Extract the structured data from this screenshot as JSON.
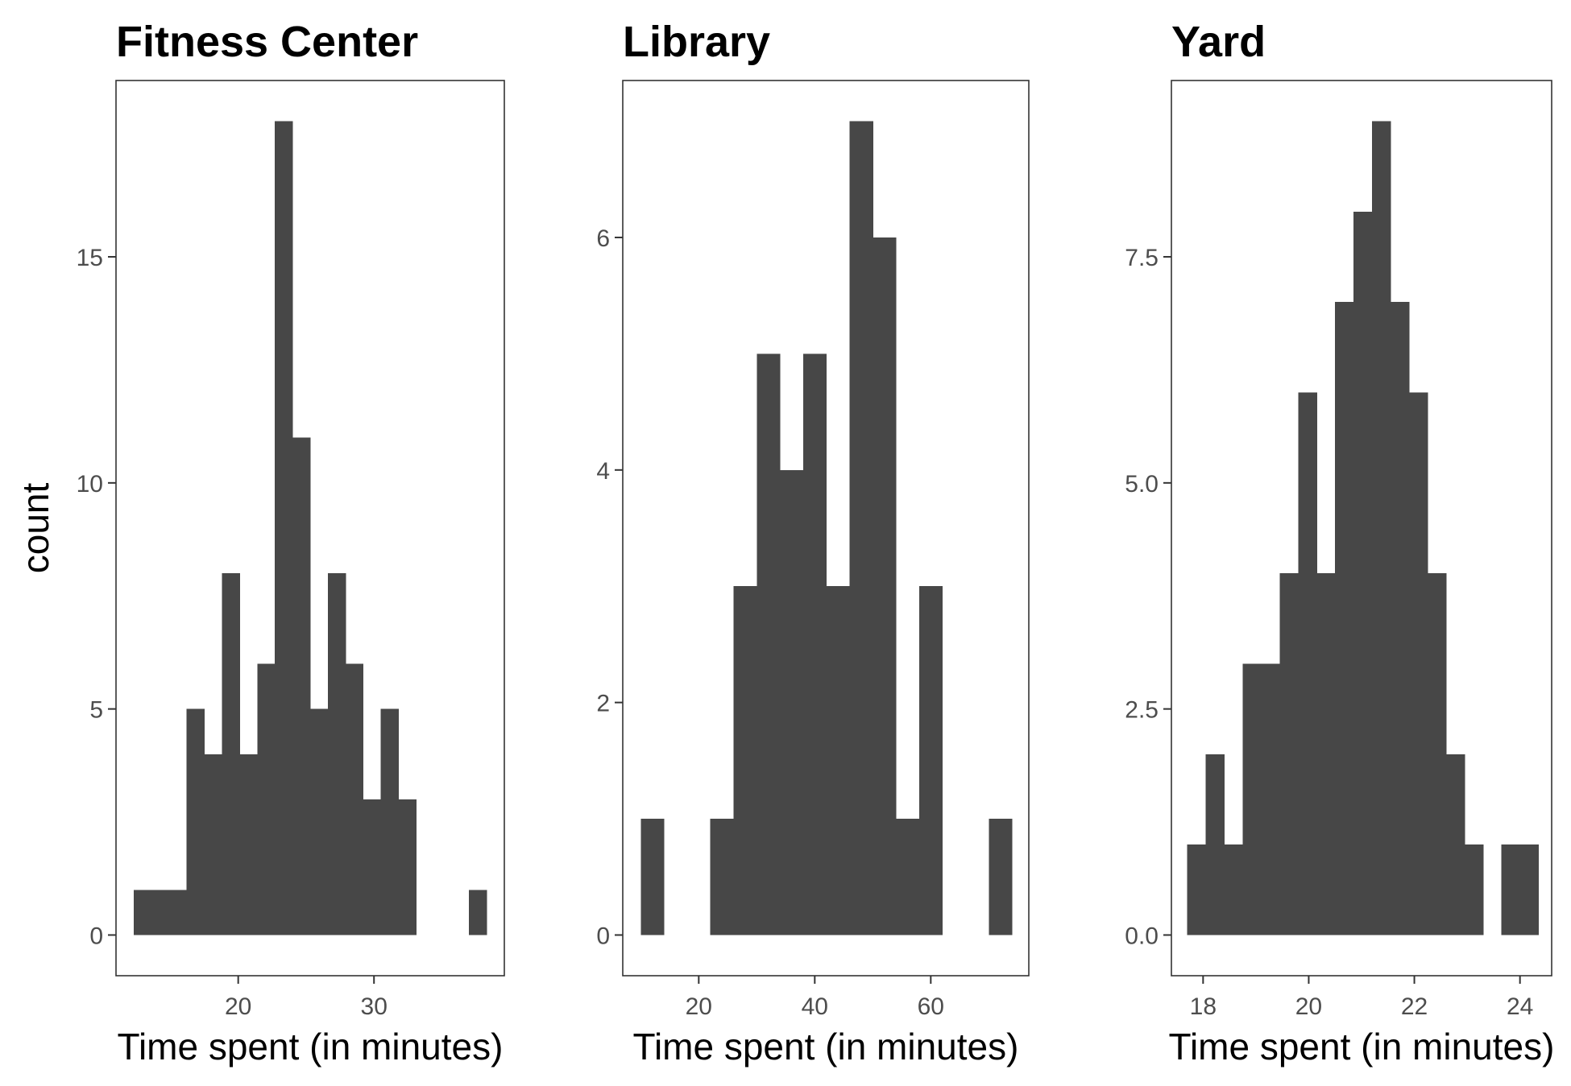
{
  "chart_data": [
    {
      "type": "bar",
      "title": "Fitness Center",
      "xlabel": "Time spent (in minutes)",
      "ylabel": "count",
      "binwidth": 1.3,
      "bins": [
        {
          "x0": 12.3,
          "count": 1
        },
        {
          "x0": 13.6,
          "count": 1
        },
        {
          "x0": 14.9,
          "count": 1
        },
        {
          "x0": 16.2,
          "count": 5
        },
        {
          "x0": 17.5,
          "count": 4
        },
        {
          "x0": 18.8,
          "count": 8
        },
        {
          "x0": 20.1,
          "count": 4
        },
        {
          "x0": 21.4,
          "count": 6
        },
        {
          "x0": 22.7,
          "count": 18
        },
        {
          "x0": 24.0,
          "count": 11
        },
        {
          "x0": 25.3,
          "count": 5
        },
        {
          "x0": 26.6,
          "count": 8
        },
        {
          "x0": 27.9,
          "count": 6
        },
        {
          "x0": 29.2,
          "count": 3
        },
        {
          "x0": 30.5,
          "count": 5
        },
        {
          "x0": 31.8,
          "count": 3
        },
        {
          "x0": 37.0,
          "count": 1
        }
      ],
      "xlim": [
        11.0,
        39.6
      ],
      "ylim": [
        -0.9,
        18.9
      ],
      "xticks": [
        20,
        30
      ],
      "yticks": [
        0,
        5,
        10,
        15
      ],
      "ytick_labels": [
        "0",
        "5",
        "10",
        "15"
      ]
    },
    {
      "type": "bar",
      "title": "Library",
      "xlabel": "Time spent (in minutes)",
      "binwidth": 4.0,
      "bins": [
        {
          "x0": 10.0,
          "count": 1
        },
        {
          "x0": 22.0,
          "count": 1
        },
        {
          "x0": 26.0,
          "count": 3
        },
        {
          "x0": 30.0,
          "count": 5
        },
        {
          "x0": 34.0,
          "count": 4
        },
        {
          "x0": 38.0,
          "count": 5
        },
        {
          "x0": 42.0,
          "count": 3
        },
        {
          "x0": 46.0,
          "count": 7
        },
        {
          "x0": 50.0,
          "count": 6
        },
        {
          "x0": 54.0,
          "count": 1
        },
        {
          "x0": 58.0,
          "count": 3
        },
        {
          "x0": 70.0,
          "count": 1
        }
      ],
      "xlim": [
        6.9,
        76.9
      ],
      "ylim": [
        -0.35,
        7.35
      ],
      "xticks": [
        20,
        40,
        60
      ],
      "yticks": [
        0,
        2,
        4,
        6
      ],
      "ytick_labels": [
        "0",
        "2",
        "4",
        "6"
      ]
    },
    {
      "type": "bar",
      "title": "Yard",
      "xlabel": "Time spent (in minutes)",
      "binwidth": 0.35,
      "bins": [
        {
          "x0": 17.7,
          "count": 1
        },
        {
          "x0": 18.05,
          "count": 2
        },
        {
          "x0": 18.4,
          "count": 1
        },
        {
          "x0": 18.75,
          "count": 3
        },
        {
          "x0": 19.1,
          "count": 3
        },
        {
          "x0": 19.45,
          "count": 4
        },
        {
          "x0": 19.8,
          "count": 6
        },
        {
          "x0": 20.15,
          "count": 4
        },
        {
          "x0": 20.5,
          "count": 7
        },
        {
          "x0": 20.85,
          "count": 8
        },
        {
          "x0": 21.2,
          "count": 9
        },
        {
          "x0": 21.55,
          "count": 7
        },
        {
          "x0": 21.9,
          "count": 6
        },
        {
          "x0": 22.25,
          "count": 4
        },
        {
          "x0": 22.6,
          "count": 2
        },
        {
          "x0": 22.95,
          "count": 1
        },
        {
          "x0": 23.65,
          "count": 1
        },
        {
          "x0": 24.0,
          "count": 1
        }
      ],
      "xlim": [
        17.4,
        24.6
      ],
      "ylim": [
        -0.45,
        9.45
      ],
      "xticks": [
        18,
        20,
        22,
        24
      ],
      "yticks": [
        0,
        2.5,
        5,
        7.5
      ],
      "ytick_labels": [
        "0.0",
        "2.5",
        "5.0",
        "7.5"
      ]
    }
  ]
}
